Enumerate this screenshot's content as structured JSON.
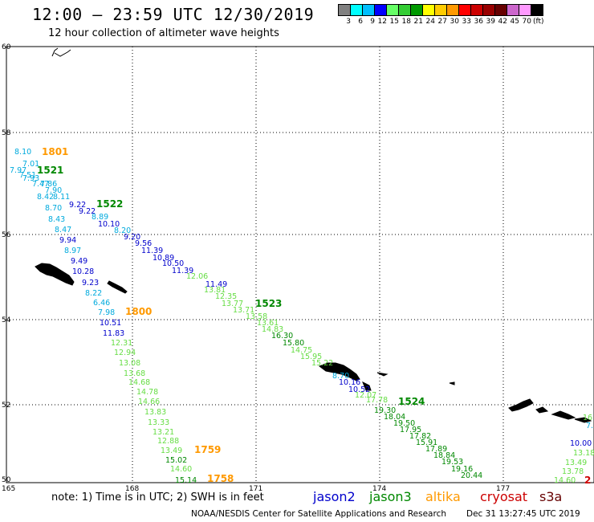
{
  "header": {
    "title": "12:00 – 23:59 UTC 12/30/2019",
    "subtitle": "12 hour collection of altimeter wave heights"
  },
  "colorbar": {
    "colors": [
      "#808080",
      "#00ffff",
      "#00bfff",
      "#0000ff",
      "#66ff66",
      "#33cc33",
      "#009900",
      "#ffff00",
      "#ffcc00",
      "#ff9900",
      "#ff0000",
      "#cc0000",
      "#990000",
      "#660000",
      "#cc66cc",
      "#ff99ff",
      "#000000"
    ],
    "labels": [
      "3",
      "6",
      "9",
      "12",
      "15",
      "18",
      "21",
      "24",
      "27",
      "30",
      "33",
      "36",
      "39",
      "42",
      "45",
      "70",
      "(ft)"
    ]
  },
  "axes": {
    "lat_labels": [
      "60",
      "58",
      "56",
      "54",
      "52",
      "50"
    ],
    "lon_labels": [
      "165",
      "168",
      "171",
      "174",
      "177"
    ]
  },
  "satellite_colors": {
    "jason2": "#0000cc",
    "jason3": "#008800",
    "altika": "#ff9900",
    "cryosat": "#cc0000",
    "s3a": "#660000",
    "light_blue": "#00aadd",
    "light_green": "#66dd44"
  },
  "time_labels": [
    {
      "text": "1801",
      "color": "#ff9900"
    },
    {
      "text": "1521",
      "color": "#008800"
    },
    {
      "text": "1522",
      "color": "#008800"
    },
    {
      "text": "1800",
      "color": "#ff9900"
    },
    {
      "text": "1523",
      "color": "#008800"
    },
    {
      "text": "1524",
      "color": "#008800"
    },
    {
      "text": "1759",
      "color": "#ff9900"
    },
    {
      "text": "1758",
      "color": "#ff9900"
    },
    {
      "text": "2",
      "color": "#cc0000"
    }
  ],
  "wave_heights": [
    {
      "v": "8.10",
      "c": "#00aadd"
    },
    {
      "v": "7.01",
      "c": "#00aadd"
    },
    {
      "v": "7.97",
      "c": "#00aadd"
    },
    {
      "v": "7.51",
      "c": "#00aadd"
    },
    {
      "v": "7.93",
      "c": "#00aadd"
    },
    {
      "v": "7.47",
      "c": "#00aadd"
    },
    {
      "v": "7.86",
      "c": "#00aadd"
    },
    {
      "v": "7.90",
      "c": "#00aadd"
    },
    {
      "v": "8.42",
      "c": "#00aadd"
    },
    {
      "v": "8.11",
      "c": "#00aadd"
    },
    {
      "v": "8.70",
      "c": "#00aadd"
    },
    {
      "v": "8.43",
      "c": "#00aadd"
    },
    {
      "v": "8.47",
      "c": "#00aadd"
    },
    {
      "v": "9.94",
      "c": "#0000cc"
    },
    {
      "v": "8.97",
      "c": "#00aadd"
    },
    {
      "v": "9.49",
      "c": "#0000cc"
    },
    {
      "v": "10.28",
      "c": "#0000cc"
    },
    {
      "v": "9.23",
      "c": "#0000cc"
    },
    {
      "v": "8.22",
      "c": "#00aadd"
    },
    {
      "v": "6.46",
      "c": "#00aadd"
    },
    {
      "v": "7.98",
      "c": "#00aadd"
    },
    {
      "v": "10.51",
      "c": "#0000cc"
    },
    {
      "v": "11.83",
      "c": "#0000cc"
    },
    {
      "v": "9.22",
      "c": "#0000cc"
    },
    {
      "v": "9.22",
      "c": "#0000cc"
    },
    {
      "v": "8.89",
      "c": "#00aadd"
    },
    {
      "v": "10.10",
      "c": "#0000cc"
    },
    {
      "v": "8.20",
      "c": "#00aadd"
    },
    {
      "v": "9.20",
      "c": "#0000cc"
    },
    {
      "v": "9.56",
      "c": "#0000cc"
    },
    {
      "v": "11.39",
      "c": "#0000cc"
    },
    {
      "v": "10.89",
      "c": "#0000cc"
    },
    {
      "v": "10.50",
      "c": "#0000cc"
    },
    {
      "v": "11.39",
      "c": "#0000cc"
    },
    {
      "v": "11.49",
      "c": "#0000cc"
    },
    {
      "v": "12.06",
      "c": "#66dd44"
    },
    {
      "v": "13.81",
      "c": "#66dd44"
    },
    {
      "v": "12.35",
      "c": "#66dd44"
    },
    {
      "v": "13.77",
      "c": "#66dd44"
    },
    {
      "v": "13.71",
      "c": "#66dd44"
    },
    {
      "v": "13.58",
      "c": "#66dd44"
    },
    {
      "v": "13.61",
      "c": "#66dd44"
    },
    {
      "v": "14.83",
      "c": "#66dd44"
    },
    {
      "v": "16.30",
      "c": "#008800"
    },
    {
      "v": "15.80",
      "c": "#008800"
    },
    {
      "v": "14.75",
      "c": "#66dd44"
    },
    {
      "v": "15.95",
      "c": "#66dd44"
    },
    {
      "v": "15.22",
      "c": "#66dd44"
    },
    {
      "v": "8.70",
      "c": "#00aadd"
    },
    {
      "v": "10.16",
      "c": "#0000cc"
    },
    {
      "v": "10.52",
      "c": "#0000cc"
    },
    {
      "v": "12.07",
      "c": "#66dd44"
    },
    {
      "v": "17.78",
      "c": "#66dd44"
    },
    {
      "v": "19.30",
      "c": "#008800"
    },
    {
      "v": "18.04",
      "c": "#008800"
    },
    {
      "v": "19.50",
      "c": "#008800"
    },
    {
      "v": "17.95",
      "c": "#008800"
    },
    {
      "v": "17.82",
      "c": "#008800"
    },
    {
      "v": "15.91",
      "c": "#008800"
    },
    {
      "v": "17.89",
      "c": "#008800"
    },
    {
      "v": "18.84",
      "c": "#008800"
    },
    {
      "v": "19.53",
      "c": "#008800"
    },
    {
      "v": "19.16",
      "c": "#008800"
    },
    {
      "v": "20.44",
      "c": "#008800"
    },
    {
      "v": "12.31",
      "c": "#66dd44"
    },
    {
      "v": "12.94",
      "c": "#66dd44"
    },
    {
      "v": "13.08",
      "c": "#66dd44"
    },
    {
      "v": "13.68",
      "c": "#66dd44"
    },
    {
      "v": "14.68",
      "c": "#66dd44"
    },
    {
      "v": "14.78",
      "c": "#66dd44"
    },
    {
      "v": "14.66",
      "c": "#66dd44"
    },
    {
      "v": "13.83",
      "c": "#66dd44"
    },
    {
      "v": "13.33",
      "c": "#66dd44"
    },
    {
      "v": "13.21",
      "c": "#66dd44"
    },
    {
      "v": "12.88",
      "c": "#66dd44"
    },
    {
      "v": "13.49",
      "c": "#66dd44"
    },
    {
      "v": "15.02",
      "c": "#008800"
    },
    {
      "v": "14.60",
      "c": "#66dd44"
    },
    {
      "v": "15.14",
      "c": "#008800"
    },
    {
      "v": "16",
      "c": "#66dd44"
    },
    {
      "v": "7.",
      "c": "#00aadd"
    },
    {
      "v": "10.00",
      "c": "#0000cc"
    },
    {
      "v": "13.18",
      "c": "#66dd44"
    },
    {
      "v": "13.49",
      "c": "#66dd44"
    },
    {
      "v": "13.78",
      "c": "#66dd44"
    },
    {
      "v": "14.60",
      "c": "#66dd44"
    }
  ],
  "footer": {
    "note": "note: 1) Time is in UTC; 2) SWH is in feet",
    "sat_jason2": "jason2",
    "sat_jason3": "jason3",
    "sat_altika": "altika",
    "sat_cryosat": "cryosat",
    "sat_s3a": "s3a",
    "credit": "NOAA/NESDIS Center for Satellite Applications and Research",
    "timestamp": "Dec 31 13:27:45 UTC 2019"
  }
}
